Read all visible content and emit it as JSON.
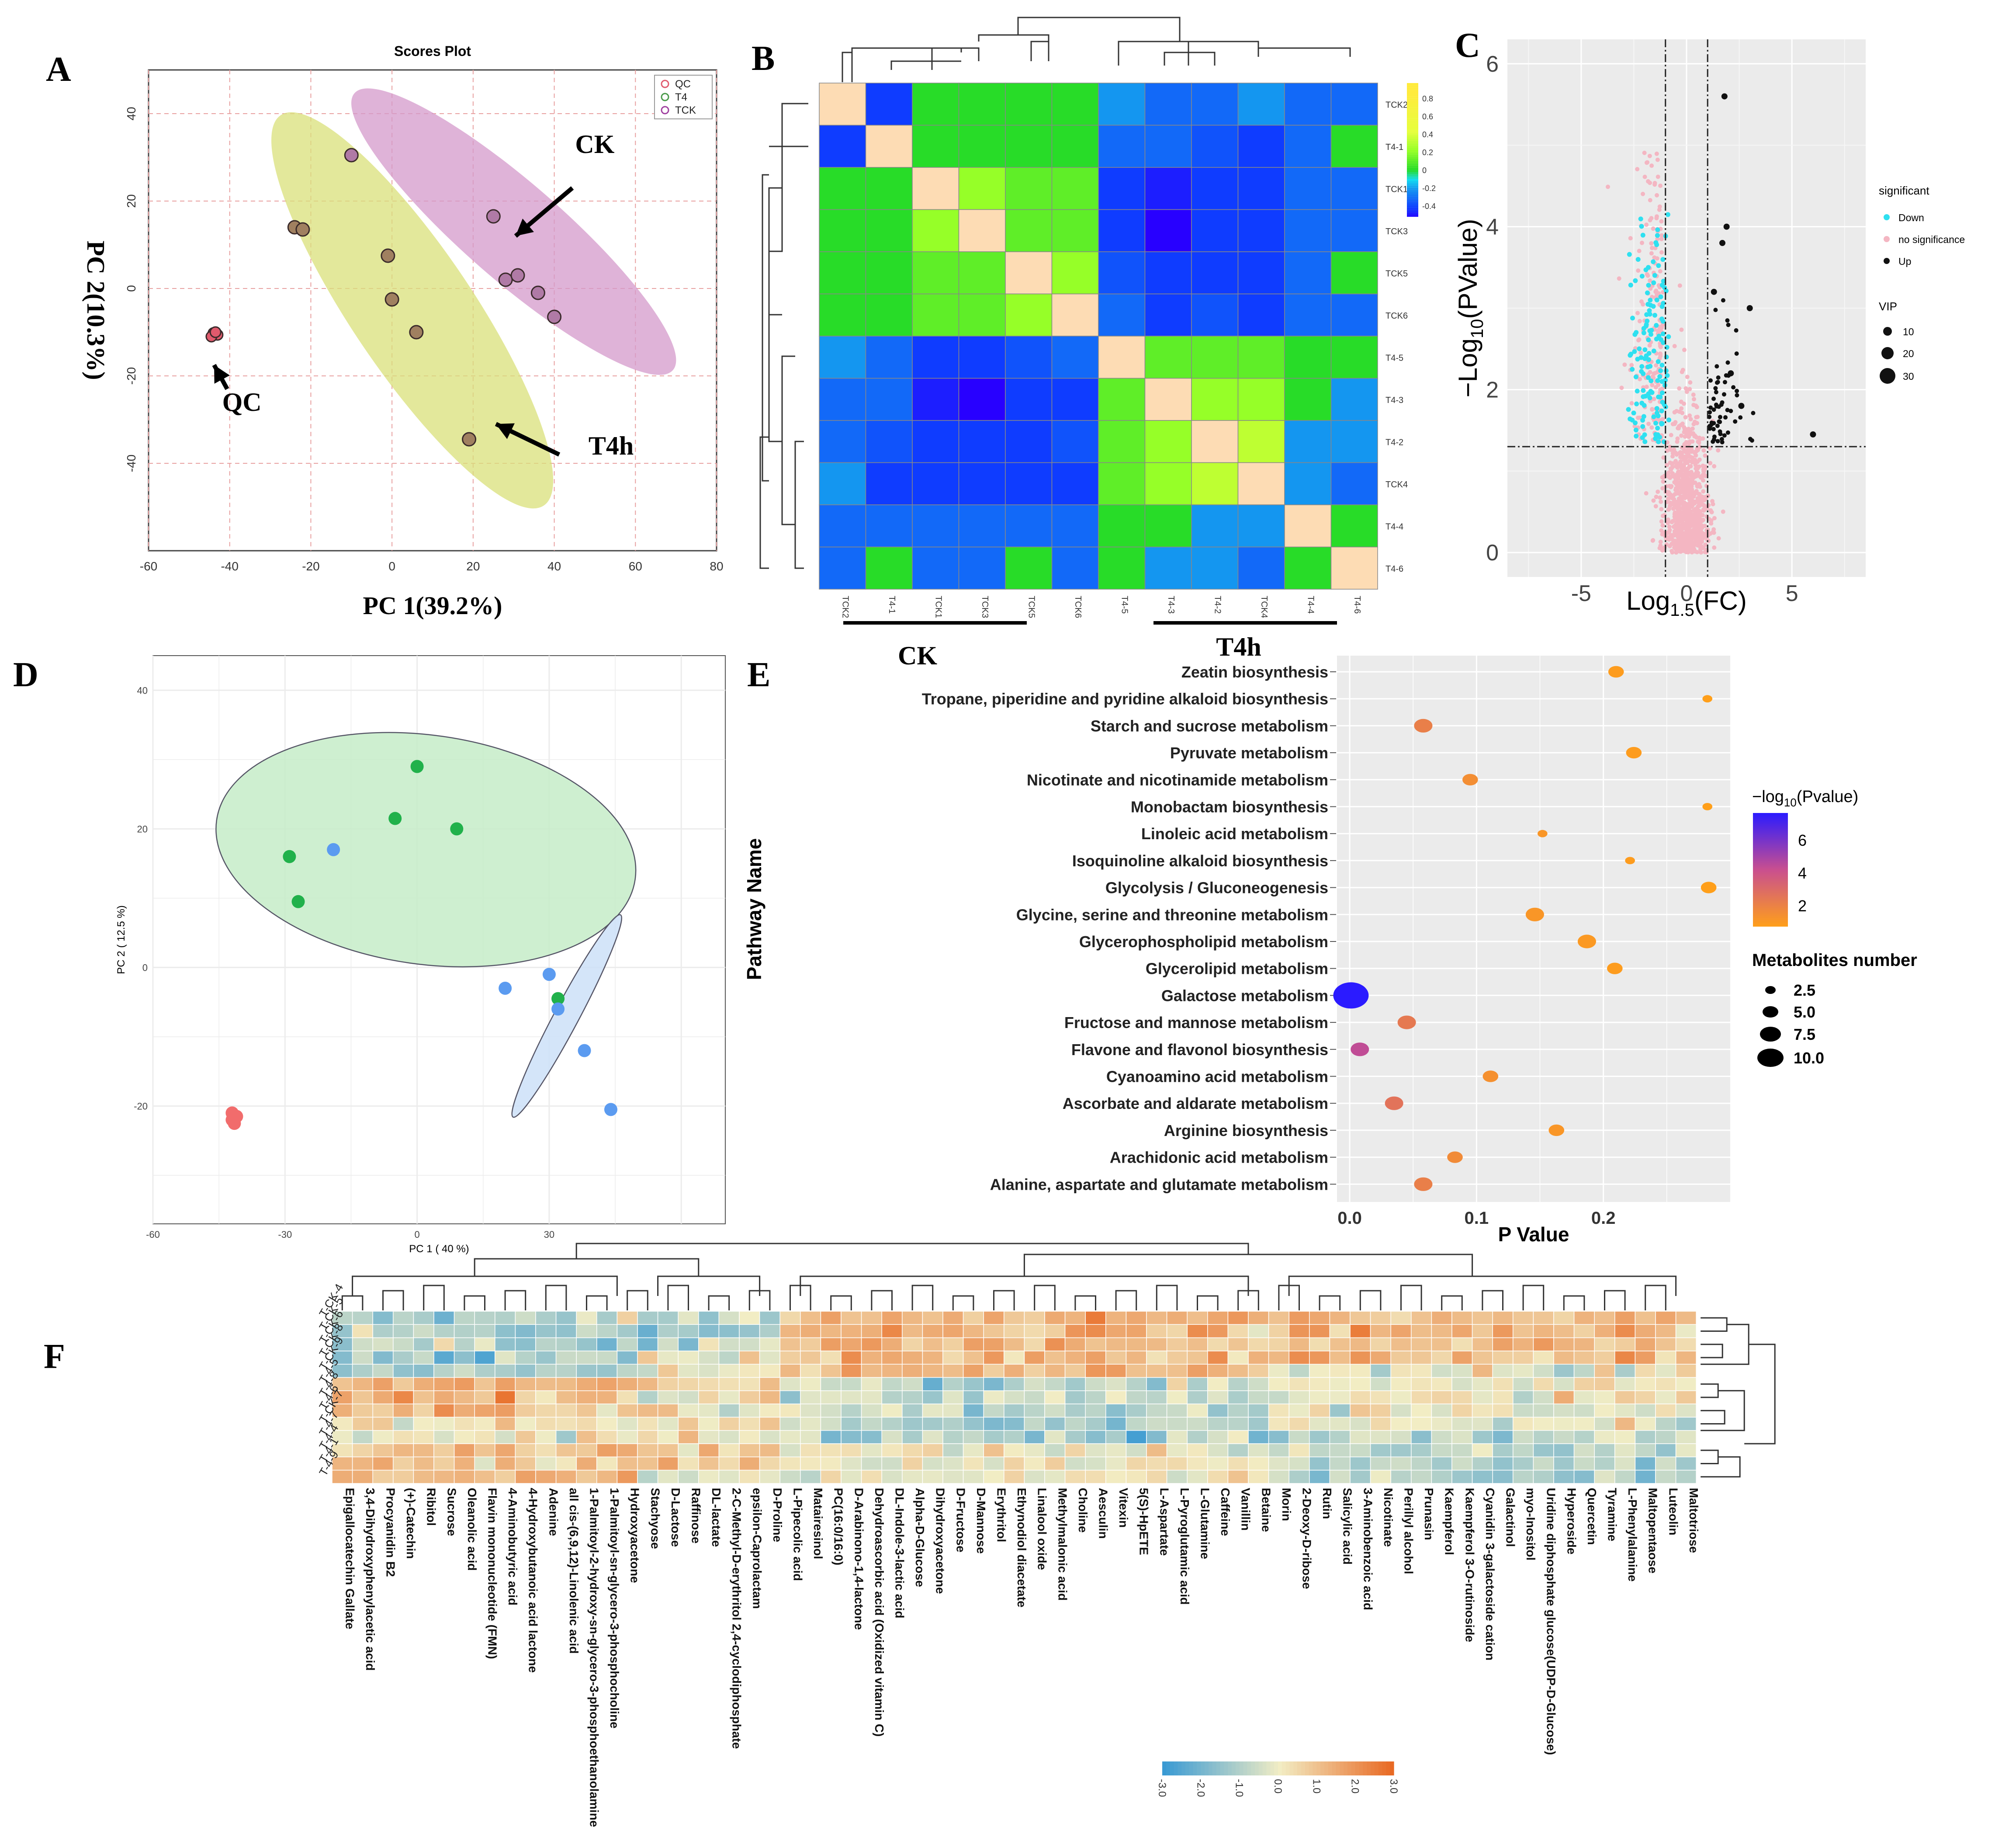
{
  "panel_letters": {
    "a": "A",
    "b": "B",
    "c": "C",
    "d": "D",
    "e": "E",
    "f": "F"
  },
  "colors": {
    "qc": "#e05a6d",
    "ck": "#b07aa6",
    "t4": "#a08060",
    "ellipse_ck": "#d49acb",
    "ellipse_t4": "#d9e07a",
    "pcaD_green": "#21b14b",
    "pcaD_blue": "#5b9bf0",
    "pcaD_red": "#f16c6c",
    "volcano_down": "#2ee0f0",
    "volcano_ns": "#f4b6c2",
    "volcano_up": "#111111",
    "heat_low": "#3a9ad3",
    "heat_mid": "#f2edc4",
    "heat_high": "#e8651e"
  },
  "chart_data": [
    {
      "panel": "A",
      "type": "scatter",
      "title": "Scores Plot",
      "xlabel": "PC 1(39.2%)",
      "ylabel": "PC 2(10.3%)",
      "xlim": [
        -60,
        80
      ],
      "ylim": [
        -60,
        50
      ],
      "xticks": [
        -60,
        -40,
        -20,
        0,
        20,
        40,
        60,
        80
      ],
      "yticks": [
        40,
        20,
        0,
        -20,
        -40
      ],
      "legend": [
        {
          "name": "QC",
          "color": "#e05a6d"
        },
        {
          "name": "T4",
          "color": "#4a9a4a"
        },
        {
          "name": "TCK",
          "color": "#a040a0"
        }
      ],
      "legend_position": "top-right",
      "ellipses": [
        {
          "group": "T4",
          "cx": 5,
          "cy": -5,
          "rx": 58,
          "ry": 15,
          "angle": 56
        },
        {
          "group": "CK",
          "cx": 30,
          "cy": 13,
          "rx": 52,
          "ry": 12,
          "angle": 41
        }
      ],
      "points": [
        {
          "x": -44,
          "y": -10.2,
          "group": "QC"
        },
        {
          "x": -43,
          "y": -10.6,
          "group": "QC"
        },
        {
          "x": -44.5,
          "y": -11.0,
          "group": "QC"
        },
        {
          "x": -43.5,
          "y": -10.0,
          "group": "QC"
        },
        {
          "x": -10,
          "y": 30.5,
          "group": "CK"
        },
        {
          "x": 25,
          "y": 16.5,
          "group": "CK"
        },
        {
          "x": 28,
          "y": 2,
          "group": "CK"
        },
        {
          "x": 31,
          "y": 3,
          "group": "CK"
        },
        {
          "x": 36,
          "y": -1,
          "group": "CK"
        },
        {
          "x": 40,
          "y": -6.5,
          "group": "CK"
        },
        {
          "x": -24,
          "y": 14,
          "group": "T4"
        },
        {
          "x": -22,
          "y": 13.5,
          "group": "T4"
        },
        {
          "x": -1,
          "y": 7.5,
          "group": "T4"
        },
        {
          "x": 0,
          "y": -2.5,
          "group": "T4"
        },
        {
          "x": 6,
          "y": -10,
          "group": "T4"
        },
        {
          "x": 19,
          "y": -34.5,
          "group": "T4"
        }
      ],
      "annotations": [
        {
          "text": "CK",
          "x": 50,
          "y": 31,
          "arrow_to_x": 33,
          "arrow_to_y": 16
        },
        {
          "text": "QC",
          "x": -37,
          "y": -28,
          "arrow_to_x": -43,
          "arrow_to_y": -14
        },
        {
          "text": "T4h",
          "x": 54,
          "y": -38,
          "arrow_to_x": 28,
          "arrow_to_y": -28
        }
      ]
    },
    {
      "panel": "B",
      "type": "heatmap",
      "rows": [
        "TCK2",
        "T4-1",
        "TCK1",
        "TCK3",
        "TCK5",
        "TCK6",
        "T4-5",
        "T4-3",
        "T4-2",
        "TCK4",
        "T4-4",
        "T4-6"
      ],
      "cols": [
        "TCK2",
        "T4-1",
        "TCK1",
        "TCK3",
        "TCK5",
        "TCK6",
        "T4-5",
        "T4-3",
        "T4-2",
        "TCK4",
        "T4-4",
        "T4-6"
      ],
      "values": [
        [
          1.0,
          -0.4,
          0.0,
          0.0,
          0.0,
          0.0,
          -0.2,
          -0.3,
          -0.3,
          -0.2,
          -0.3,
          -0.3
        ],
        [
          -0.4,
          1.0,
          0.0,
          0.0,
          0.0,
          0.0,
          -0.3,
          -0.3,
          -0.35,
          -0.4,
          -0.3,
          0.0
        ],
        [
          0.0,
          0.0,
          1.0,
          0.2,
          0.1,
          0.1,
          -0.4,
          -0.45,
          -0.4,
          -0.4,
          -0.3,
          -0.3
        ],
        [
          0.0,
          0.0,
          0.2,
          1.0,
          0.1,
          0.1,
          -0.4,
          -0.5,
          -0.4,
          -0.4,
          -0.3,
          -0.3
        ],
        [
          0.0,
          0.0,
          0.1,
          0.1,
          1.0,
          0.2,
          -0.35,
          -0.4,
          -0.4,
          -0.4,
          -0.3,
          0.0
        ],
        [
          0.0,
          0.0,
          0.1,
          0.1,
          0.2,
          1.0,
          -0.3,
          -0.4,
          -0.35,
          -0.4,
          -0.3,
          -0.3
        ],
        [
          -0.2,
          -0.3,
          -0.4,
          -0.4,
          -0.35,
          -0.3,
          1.0,
          0.1,
          0.1,
          0.1,
          0.0,
          0.0
        ],
        [
          -0.3,
          -0.3,
          -0.45,
          -0.5,
          -0.4,
          -0.4,
          0.1,
          1.0,
          0.2,
          0.2,
          0.0,
          -0.2
        ],
        [
          -0.3,
          -0.35,
          -0.4,
          -0.4,
          -0.4,
          -0.35,
          0.1,
          0.2,
          1.0,
          0.3,
          -0.2,
          -0.2
        ],
        [
          -0.2,
          -0.4,
          -0.4,
          -0.4,
          -0.4,
          -0.4,
          0.1,
          0.2,
          0.3,
          1.0,
          -0.2,
          -0.3
        ],
        [
          -0.3,
          -0.3,
          -0.3,
          -0.3,
          -0.3,
          -0.3,
          0.0,
          0.0,
          -0.2,
          -0.2,
          1.0,
          0.0
        ],
        [
          -0.3,
          0.0,
          -0.3,
          -0.3,
          0.0,
          -0.3,
          0.0,
          -0.2,
          -0.2,
          -0.3,
          0.0,
          1.0
        ]
      ],
      "colorbar_ticks": [
        "0.8",
        "0.6",
        "0.4",
        "0.2",
        "0",
        "-0.2",
        "-0.4"
      ],
      "group_labels": [
        "CK",
        "T4h"
      ]
    },
    {
      "panel": "C",
      "type": "scatter",
      "subtype": "volcano",
      "xlabel_main": "Log",
      "xlabel_sub": "1.5",
      "xlabel_tail": "(FC)",
      "ylabel_prefix": "−Log",
      "ylabel_sub": "10",
      "ylabel_tail": "(PValue)",
      "xlim": [
        -8.5,
        8.5
      ],
      "ylim": [
        -0.3,
        6.3
      ],
      "xticks": [
        "-5",
        "0",
        "5"
      ],
      "yticks": [
        "0",
        "2",
        "4",
        "6"
      ],
      "vlines": [
        -1,
        1
      ],
      "hline": 1.3,
      "legend_title": "significant",
      "legend_items": [
        "Down",
        "no significance",
        "Up"
      ],
      "vip_title": "VIP",
      "vip_items": [
        "10",
        "20",
        "30"
      ],
      "up_points": [
        {
          "x": 1.8,
          "y": 5.6
        },
        {
          "x": 3.0,
          "y": 3.0
        },
        {
          "x": 6.0,
          "y": 1.45
        },
        {
          "x": 1.9,
          "y": 4.0
        },
        {
          "x": 1.7,
          "y": 3.8
        },
        {
          "x": 1.3,
          "y": 3.2
        },
        {
          "x": 2.1,
          "y": 2.2
        },
        {
          "x": 2.6,
          "y": 1.8
        }
      ]
    },
    {
      "panel": "D",
      "type": "scatter",
      "xlabel": "PC 1 ( 40 %)",
      "ylabel": "PC 2 ( 12.5 %)",
      "xlim": [
        -60,
        70
      ],
      "ylim": [
        -37,
        45
      ],
      "xticks": [
        "-60",
        "-30",
        "0",
        "30"
      ],
      "yticks": [
        "40",
        "20",
        "0",
        "-20"
      ],
      "ellipses": [
        {
          "group": "green",
          "cx": 2,
          "cy": 17,
          "rx": 48,
          "ry": 26,
          "angle": 8
        },
        {
          "group": "blue",
          "cx": 34,
          "cy": -7,
          "rx": 26,
          "ry": 2.8,
          "angle": -62
        }
      ],
      "points": [
        {
          "x": 0,
          "y": 29,
          "group": "green"
        },
        {
          "x": -5,
          "y": 21.5,
          "group": "green"
        },
        {
          "x": 9,
          "y": 20,
          "group": "green"
        },
        {
          "x": -29,
          "y": 16,
          "group": "green"
        },
        {
          "x": -27,
          "y": 9.5,
          "group": "green"
        },
        {
          "x": 32,
          "y": -4.5,
          "group": "green"
        },
        {
          "x": -19,
          "y": 17,
          "group": "blue"
        },
        {
          "x": 20,
          "y": -3,
          "group": "blue"
        },
        {
          "x": 30,
          "y": -1,
          "group": "blue"
        },
        {
          "x": 32,
          "y": -6,
          "group": "blue"
        },
        {
          "x": 38,
          "y": -12,
          "group": "blue"
        },
        {
          "x": 44,
          "y": -20.5,
          "group": "blue"
        },
        {
          "x": -42,
          "y": -21,
          "group": "red"
        },
        {
          "x": -41,
          "y": -21.5,
          "group": "red"
        },
        {
          "x": -42,
          "y": -22,
          "group": "red"
        },
        {
          "x": -41.5,
          "y": -22.5,
          "group": "red"
        }
      ]
    },
    {
      "panel": "E",
      "type": "scatter",
      "subtype": "bubble",
      "xlabel": "P Value",
      "ylabel": "Pathway Name",
      "xlim": [
        -0.01,
        0.3
      ],
      "xticks": [
        "0.0",
        "0.1",
        "0.2"
      ],
      "pathways": [
        {
          "name": "Zeatin biosynthesis",
          "p": 0.21,
          "count": 3,
          "logp": 1.6
        },
        {
          "name": "Tropane, piperidine and pyridine alkaloid biosynthesis",
          "p": 0.282,
          "count": 1,
          "logp": 1.5
        },
        {
          "name": "Starch and sucrose metabolism",
          "p": 0.058,
          "count": 4,
          "logp": 2.6
        },
        {
          "name": "Pyruvate metabolism",
          "p": 0.224,
          "count": 3,
          "logp": 1.6
        },
        {
          "name": "Nicotinate and nicotinamide metabolism",
          "p": 0.095,
          "count": 3,
          "logp": 2.1
        },
        {
          "name": "Monobactam biosynthesis",
          "p": 0.282,
          "count": 1,
          "logp": 1.5
        },
        {
          "name": "Linoleic acid metabolism",
          "p": 0.152,
          "count": 1,
          "logp": 1.8
        },
        {
          "name": "Isoquinoline alkaloid biosynthesis",
          "p": 0.221,
          "count": 1,
          "logp": 1.6
        },
        {
          "name": "Glycolysis / Gluconeogenesis",
          "p": 0.283,
          "count": 3,
          "logp": 1.5
        },
        {
          "name": "Glycine, serine and threonine metabolism",
          "p": 0.146,
          "count": 4,
          "logp": 1.8
        },
        {
          "name": "Glycerophospholipid metabolism",
          "p": 0.187,
          "count": 4,
          "logp": 1.7
        },
        {
          "name": "Glycerolipid metabolism",
          "p": 0.209,
          "count": 3,
          "logp": 1.6
        },
        {
          "name": "Galactose metabolism",
          "p": 0.001,
          "count": 10,
          "logp": 7.0
        },
        {
          "name": "Fructose and mannose metabolism",
          "p": 0.045,
          "count": 4,
          "logp": 2.8
        },
        {
          "name": "Flavone and flavonol biosynthesis",
          "p": 0.008,
          "count": 4,
          "logp": 4.4
        },
        {
          "name": "Cyanoamino acid metabolism",
          "p": 0.111,
          "count": 3,
          "logp": 2.0
        },
        {
          "name": "Ascorbate and aldarate metabolism",
          "p": 0.035,
          "count": 4,
          "logp": 3.0
        },
        {
          "name": "Arginine biosynthesis",
          "p": 0.163,
          "count": 3,
          "logp": 1.8
        },
        {
          "name": "Arachidonic acid metabolism",
          "p": 0.083,
          "count": 3,
          "logp": 2.2
        },
        {
          "name": "Alanine, aspartate and glutamate metabolism",
          "p": 0.058,
          "count": 4,
          "logp": 2.6
        }
      ],
      "color_legend_title_prefix": "−log",
      "color_legend_title_sub": "10",
      "color_legend_title_tail": "(Pvalue)",
      "color_ticks": [
        "6",
        "4",
        "2"
      ],
      "size_legend_title": "Metabolites number",
      "size_items": [
        "2.5",
        "5.0",
        "7.5",
        "10.0"
      ]
    },
    {
      "panel": "F",
      "type": "heatmap",
      "rows": [
        "T-CK-4",
        "T-CK-5",
        "T-CK-6",
        "T-CK-8",
        "T-CK-9",
        "T-4-5",
        "T-4-8",
        "T-4-6",
        "T-CK-7",
        "T-4-7",
        "T-4-4",
        "T-4-1",
        "T-4-9"
      ],
      "cols": [
        "Epigallocatechin Gallate",
        "3,4-Dihydroxyphenylacetic acid",
        "Procyanidin B2",
        "(+)-Catechin",
        "Ribitol",
        "Sucrose",
        "Oleanolic acid",
        "Flavin mononucleotide (FMN)",
        "4-Aminobutyric acid",
        "4-Hydroxybutanoic acid lactone",
        "Adenine",
        "all cis-(6,9,12)-Linolenic acid",
        "1-Palmitoyl-2-hydroxy-sn-glycero-3-phosphoethanolamine",
        "1-Palmitoyl-sn-glycero-3-phosphocholine",
        "Hydroxyacetone",
        "Stachyose",
        "D-Lactose",
        "Raffinose",
        "DL-lactate",
        "2-C-Methyl-D-erythritol 2,4-cyclodiphosphate",
        "epsilon-Caprolactam",
        "D-Proline",
        "L-Pipecolic acid",
        "Matairesinol",
        "PC(16:0/16:0)",
        "D-Arabinono-1,4-lactone",
        "Dehydroascorbic acid (Oxidized vitamin C)",
        "DL-Indole-3-lactic acid",
        "Alpha-D-Glucose",
        "Dihydroxyacetone",
        "D-Fructose",
        "D-Mannose",
        "Erythritol",
        "Ethynodiol diacetate",
        "Linalool oxide",
        "Methylmalonic acid",
        "Choline",
        "Aesculin",
        "Vitexin",
        "5(S)-HpETE",
        "L-Aspartate",
        "L-Pyroglutamic acid",
        "L-Glutamine",
        "Caffeine",
        "Vanillin",
        "Betaine",
        "Morin",
        "2-Deoxy-D-ribose",
        "Rutin",
        "Salicylic acid",
        "3-Aminobenzoic acid",
        "Nicotinate",
        "Perillyl alcohol",
        "Prunasin",
        "Kaempferol",
        "Kaempferol 3-O-rutinoside",
        "Cyanidin 3-galactoside cation",
        "Galactinol",
        "myo-Inositol",
        "Uridine diphosphate glucose(UDP-D-Glucose)",
        "Hyperoside",
        "Quercetin",
        "Tyramine",
        "L-Phenylalanine",
        "Maltopentaose",
        "Luteolin",
        "Maltotriose"
      ],
      "colorbar_ticks": [
        "-3.0",
        "-2.0",
        "-1.0",
        "0.0",
        "1.0",
        "2.0",
        "3.0"
      ],
      "value_range": [
        -3,
        3
      ],
      "blocks": [
        {
          "cols": [
            0,
            14
          ],
          "rows_high": [
            5,
            6,
            7,
            10,
            11,
            12
          ],
          "rows_low": [
            0,
            1,
            2,
            3,
            4
          ]
        },
        {
          "cols": [
            15,
            21
          ],
          "rows_high": [
            10,
            11
          ],
          "rows_low": [
            0,
            1,
            2
          ]
        },
        {
          "cols": [
            22,
            45
          ],
          "rows_high": [
            0,
            1,
            2,
            3,
            4
          ],
          "rows_low": [
            5,
            6,
            7,
            8,
            9
          ]
        },
        {
          "cols": [
            46,
            66
          ],
          "rows_high": [
            0,
            1,
            2,
            3
          ],
          "rows_low": [
            9,
            10,
            11,
            12
          ]
        }
      ]
    }
  ]
}
